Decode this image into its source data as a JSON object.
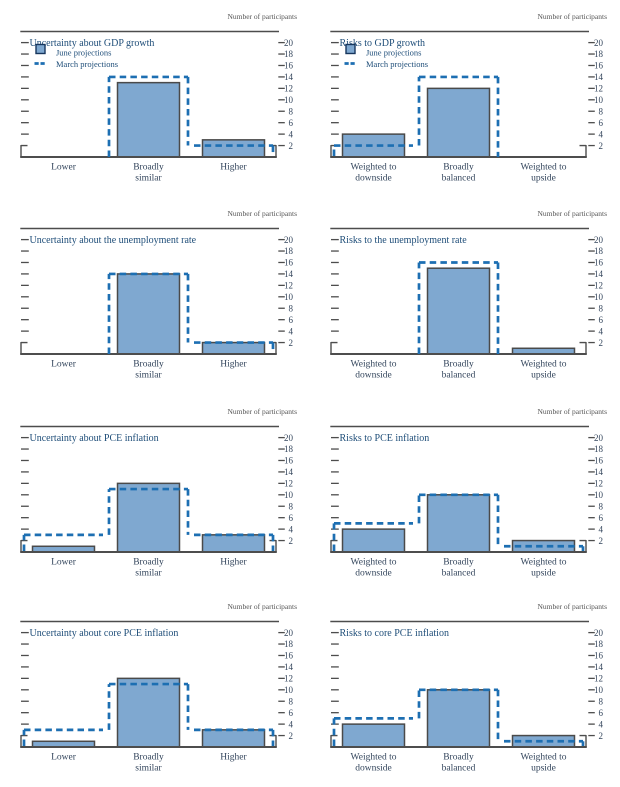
{
  "figure": {
    "y_axis_label": "Number of participants",
    "legend": {
      "june_label": "June projections",
      "march_label": "March projections"
    },
    "colors": {
      "bar_fill": "#7fa8d0",
      "bar_border": "#4a4a4a",
      "march_line": "#1d6fb2",
      "title_text": "#1f4e79",
      "axis_text": "#33455c",
      "axis_line": "#4d4d4d",
      "participants_label": "#555555",
      "legend_swatch_border": "#17365d"
    }
  },
  "chart_data": [
    {
      "type": "bar",
      "title": "Uncertainty about GDP growth",
      "legend": true,
      "categories": [
        "Lower",
        "Broadly similar",
        "Higher"
      ],
      "series": [
        {
          "name": "June projections",
          "values": [
            0,
            13,
            3
          ]
        },
        {
          "name": "March projections",
          "values": [
            0,
            14,
            2
          ]
        }
      ],
      "ylabel": "Number of participants",
      "ylim": [
        0,
        20
      ],
      "yticks": [
        2,
        4,
        6,
        8,
        10,
        12,
        14,
        16,
        18,
        20
      ]
    },
    {
      "type": "bar",
      "title": "Risks to GDP growth",
      "legend": true,
      "categories": [
        "Weighted to downside",
        "Broadly balanced",
        "Weighted to upside"
      ],
      "series": [
        {
          "name": "June projections",
          "values": [
            4,
            12,
            0
          ]
        },
        {
          "name": "March projections",
          "values": [
            2,
            14,
            0
          ]
        }
      ],
      "ylabel": "Number of participants",
      "ylim": [
        0,
        20
      ],
      "yticks": [
        2,
        4,
        6,
        8,
        10,
        12,
        14,
        16,
        18,
        20
      ]
    },
    {
      "type": "bar",
      "title": "Uncertainty about the unemployment rate",
      "legend": false,
      "categories": [
        "Lower",
        "Broadly similar",
        "Higher"
      ],
      "series": [
        {
          "name": "June projections",
          "values": [
            0,
            14,
            2
          ]
        },
        {
          "name": "March projections",
          "values": [
            0,
            14,
            2
          ]
        }
      ],
      "ylabel": "Number of participants",
      "ylim": [
        0,
        20
      ],
      "yticks": [
        2,
        4,
        6,
        8,
        10,
        12,
        14,
        16,
        18,
        20
      ]
    },
    {
      "type": "bar",
      "title": "Risks to the unemployment rate",
      "legend": false,
      "categories": [
        "Weighted to downside",
        "Broadly balanced",
        "Weighted to upside"
      ],
      "series": [
        {
          "name": "June projections",
          "values": [
            0,
            15,
            1
          ]
        },
        {
          "name": "March projections",
          "values": [
            0,
            16,
            0
          ]
        }
      ],
      "ylabel": "Number of participants",
      "ylim": [
        0,
        20
      ],
      "yticks": [
        2,
        4,
        6,
        8,
        10,
        12,
        14,
        16,
        18,
        20
      ]
    },
    {
      "type": "bar",
      "title": "Uncertainty about PCE inflation",
      "legend": false,
      "categories": [
        "Lower",
        "Broadly similar",
        "Higher"
      ],
      "series": [
        {
          "name": "June projections",
          "values": [
            1,
            12,
            3
          ]
        },
        {
          "name": "March projections",
          "values": [
            3,
            11,
            3
          ]
        }
      ],
      "ylabel": "Number of participants",
      "ylim": [
        0,
        20
      ],
      "yticks": [
        2,
        4,
        6,
        8,
        10,
        12,
        14,
        16,
        18,
        20
      ]
    },
    {
      "type": "bar",
      "title": "Risks to PCE inflation",
      "legend": false,
      "categories": [
        "Weighted to downside",
        "Broadly balanced",
        "Weighted to upside"
      ],
      "series": [
        {
          "name": "June projections",
          "values": [
            4,
            10,
            2
          ]
        },
        {
          "name": "March projections",
          "values": [
            5,
            10,
            1
          ]
        }
      ],
      "ylabel": "Number of participants",
      "ylim": [
        0,
        20
      ],
      "yticks": [
        2,
        4,
        6,
        8,
        10,
        12,
        14,
        16,
        18,
        20
      ]
    },
    {
      "type": "bar",
      "title": "Uncertainty about core PCE inflation",
      "legend": false,
      "categories": [
        "Lower",
        "Broadly similar",
        "Higher"
      ],
      "series": [
        {
          "name": "June projections",
          "values": [
            1,
            12,
            3
          ]
        },
        {
          "name": "March projections",
          "values": [
            3,
            11,
            3
          ]
        }
      ],
      "ylabel": "Number of participants",
      "ylim": [
        0,
        20
      ],
      "yticks": [
        2,
        4,
        6,
        8,
        10,
        12,
        14,
        16,
        18,
        20
      ]
    },
    {
      "type": "bar",
      "title": "Risks to core PCE inflation",
      "legend": false,
      "categories": [
        "Weighted to downside",
        "Broadly balanced",
        "Weighted to upside"
      ],
      "series": [
        {
          "name": "June projections",
          "values": [
            4,
            10,
            2
          ]
        },
        {
          "name": "March projections",
          "values": [
            5,
            10,
            1
          ]
        }
      ],
      "ylabel": "Number of participants",
      "ylim": [
        0,
        20
      ],
      "yticks": [
        2,
        4,
        6,
        8,
        10,
        12,
        14,
        16,
        18,
        20
      ]
    }
  ]
}
